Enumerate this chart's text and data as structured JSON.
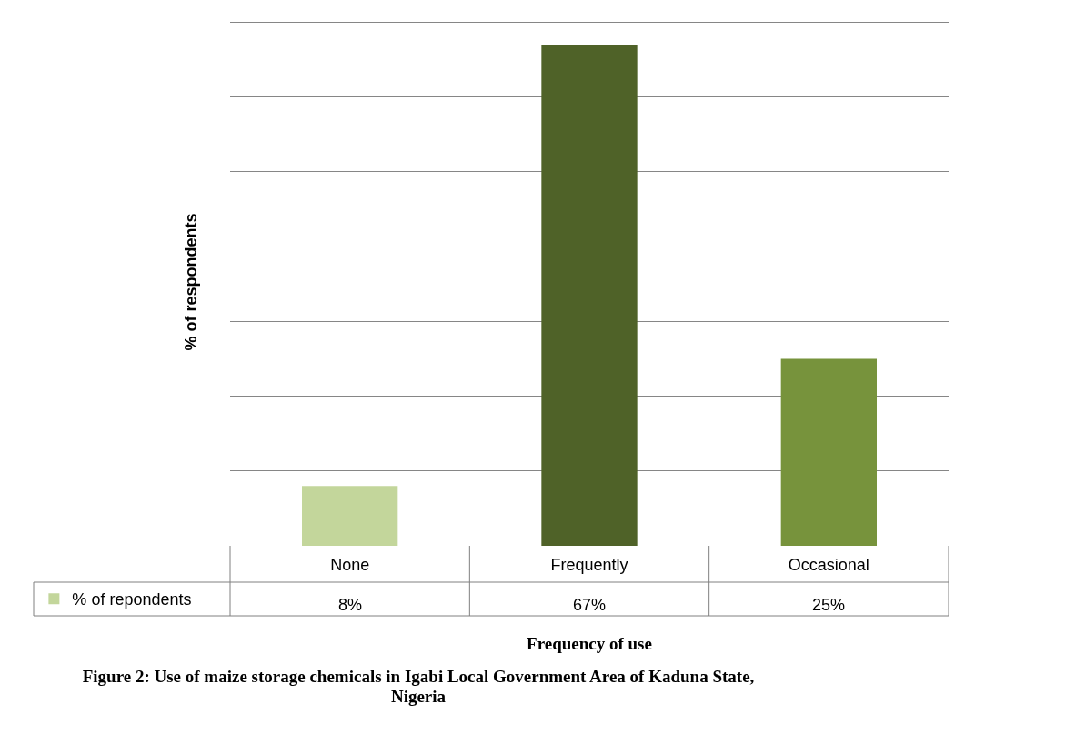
{
  "chart_data": {
    "type": "bar",
    "xlabel": "Frequency of use",
    "ylabel": "% of respondents",
    "categories": [
      "None",
      "Frequently",
      "Occasional"
    ],
    "series": [
      {
        "name": "% of repondents",
        "colors": [
          "#c3d69b",
          "#4f6228",
          "#77933c"
        ],
        "values": [
          8,
          67,
          25
        ],
        "value_labels": [
          "8%",
          "67%",
          "25%"
        ]
      }
    ],
    "tick_labels": "x",
    "grid": "y",
    "legend": "bottom left",
    "annotations": [
      "Figure 2: Use of maize storage chemicals in Igabi Local Government Area of Kaduna State, Nigeria"
    ]
  }
}
